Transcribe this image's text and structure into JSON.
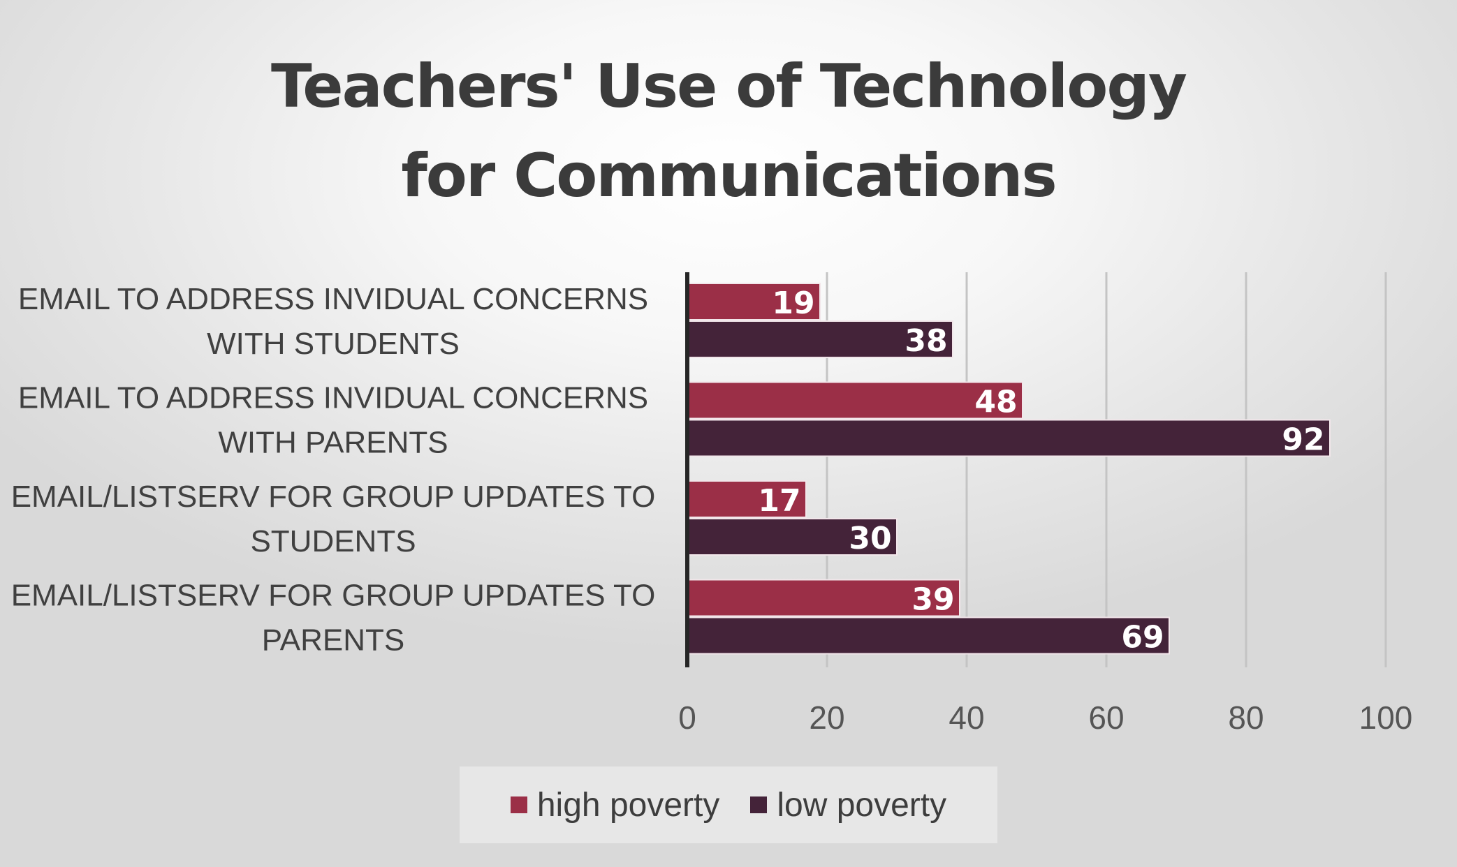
{
  "chart_data": {
    "type": "bar",
    "orientation": "horizontal",
    "title": [
      "Teachers' Use of Technology",
      "for Communications"
    ],
    "categories": [
      [
        "EMAIL TO ADDRESS INVIDUAL CONCERNS",
        "WITH STUDENTS"
      ],
      [
        "EMAIL TO ADDRESS INVIDUAL CONCERNS",
        "WITH PARENTS"
      ],
      [
        "EMAIL/LISTSERV FOR GROUP UPDATES TO",
        "STUDENTS"
      ],
      [
        "EMAIL/LISTSERV FOR GROUP UPDATES TO",
        "PARENTS"
      ]
    ],
    "series": [
      {
        "name": "high poverty",
        "color": "#9b2f47",
        "values": [
          19,
          48,
          17,
          39
        ]
      },
      {
        "name": "low poverty",
        "color": "#442339",
        "values": [
          38,
          92,
          30,
          69
        ]
      }
    ],
    "xlim": [
      0,
      100
    ],
    "xticks": [
      0,
      20,
      40,
      60,
      80,
      100
    ],
    "data_labels": true,
    "grid": "vertical",
    "legend_position": "bottom"
  }
}
